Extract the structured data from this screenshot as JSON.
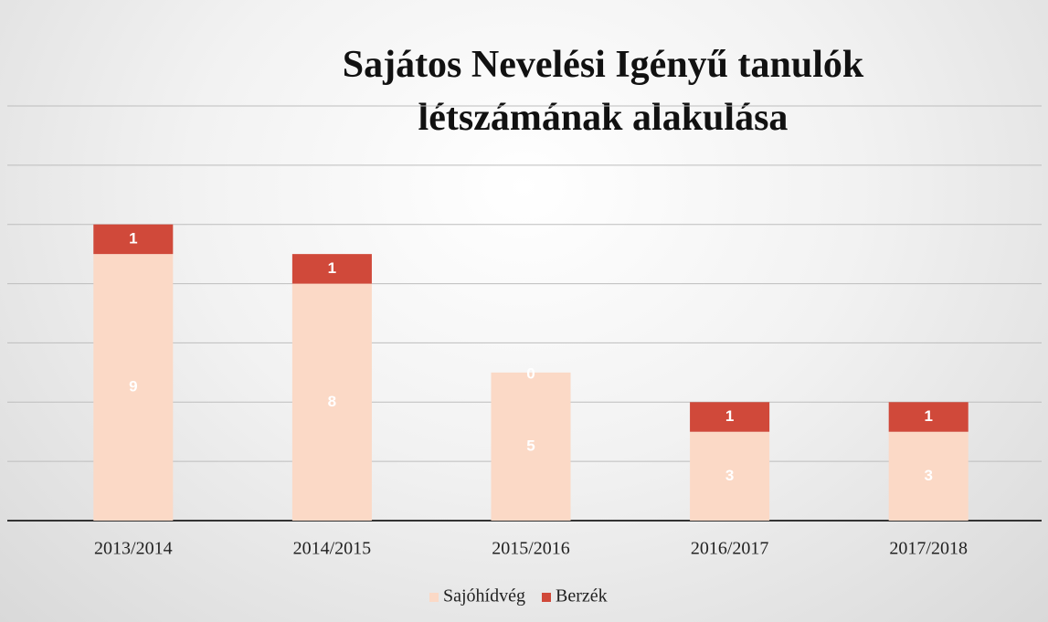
{
  "chart_data": {
    "type": "stacked_bar",
    "title": "Sajátos Nevelési Igényű tanulók létszámának alakulása",
    "categories": [
      "2013/2014",
      "2014/2015",
      "2015/2016",
      "2016/2017",
      "2017/2018"
    ],
    "series": [
      {
        "name": "Sajóhídvég",
        "color": "#fbd9c6",
        "values": [
          9,
          8,
          5,
          3,
          3
        ]
      },
      {
        "name": "Berzék",
        "color": "#d0493a",
        "values": [
          1,
          1,
          0,
          1,
          1
        ]
      }
    ],
    "ylim": [
      0,
      14
    ],
    "yticks": [
      0,
      2,
      4,
      6,
      8,
      10,
      12,
      14
    ],
    "grid": true,
    "legend": "bottom"
  }
}
